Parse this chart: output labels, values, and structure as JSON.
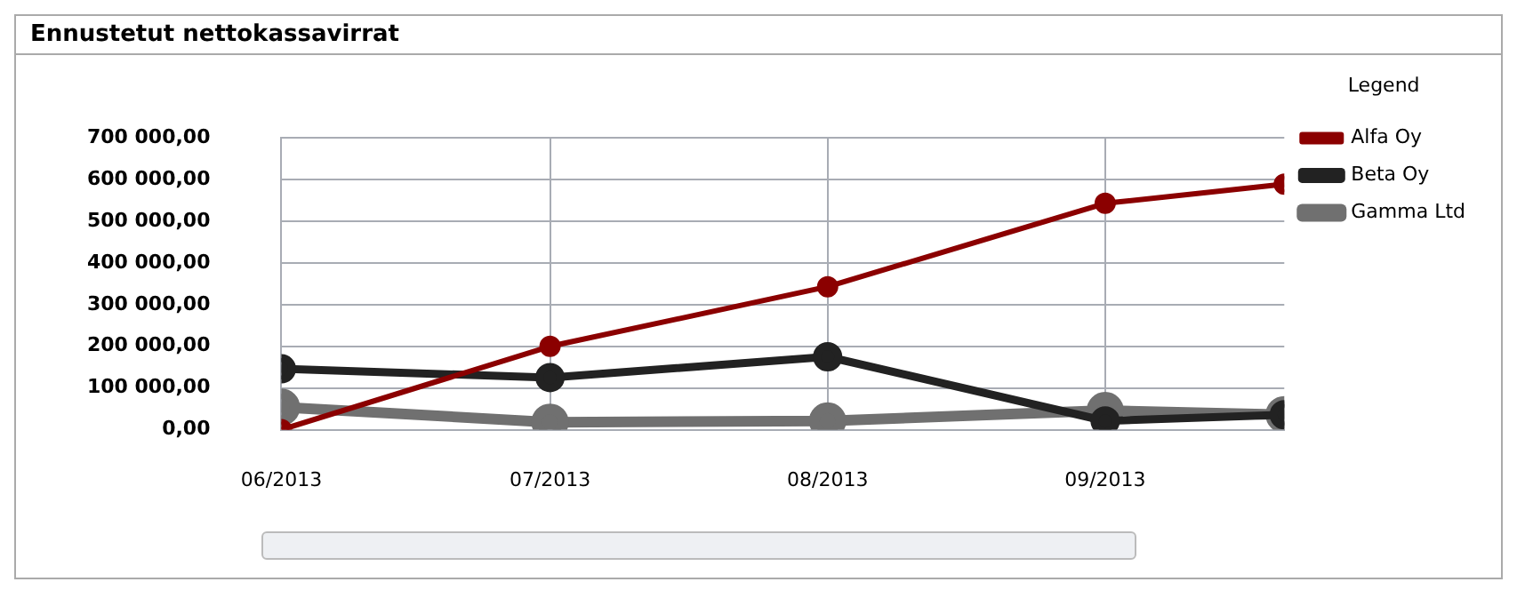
{
  "chart_data": {
    "type": "line",
    "title": "Ennustetut nettokassavirrat",
    "legend_title": "Legend",
    "x": [
      "2013-06-01",
      "2013-07-01",
      "2013-08-01",
      "2013-09-01",
      "2013-09-21"
    ],
    "xlim": [
      "2013-06-01",
      "2013-09-21"
    ],
    "xticks": [
      {
        "value": "2013-06-01",
        "label": "06/2013"
      },
      {
        "value": "2013-07-01",
        "label": "07/2013"
      },
      {
        "value": "2013-08-01",
        "label": "08/2013"
      },
      {
        "value": "2013-09-01",
        "label": "09/2013"
      }
    ],
    "ylim": [
      0,
      700000
    ],
    "yticks": [
      {
        "value": 0,
        "label": "0,00"
      },
      {
        "value": 100000,
        "label": "100 000,00"
      },
      {
        "value": 200000,
        "label": "200 000,00"
      },
      {
        "value": 300000,
        "label": "300 000,00"
      },
      {
        "value": 400000,
        "label": "400 000,00"
      },
      {
        "value": 500000,
        "label": "500 000,00"
      },
      {
        "value": 600000,
        "label": "600 000,00"
      },
      {
        "value": 700000,
        "label": "700 000,00"
      }
    ],
    "series": [
      {
        "name": "Alfa Oy",
        "color": "#8b0000",
        "values": [
          0,
          200000,
          343000,
          543000,
          589000
        ]
      },
      {
        "name": "Beta Oy",
        "color": "#222222",
        "values": [
          146000,
          125000,
          175000,
          21000,
          36000
        ]
      },
      {
        "name": "Gamma Ltd",
        "color": "#707070",
        "values": [
          54000,
          18000,
          21000,
          46000,
          36000
        ]
      }
    ],
    "grid": true,
    "legend": "right",
    "marker": "circle",
    "line_style": "solid"
  }
}
